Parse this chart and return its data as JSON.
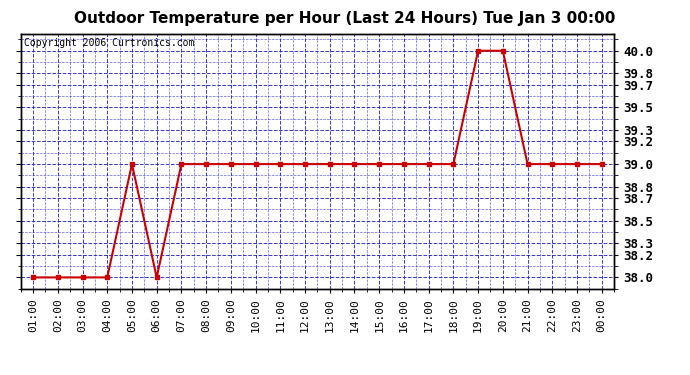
{
  "title": "Outdoor Temperature per Hour (Last 24 Hours) Tue Jan 3 00:00",
  "copyright": "Copyright 2006 Curtronics.com",
  "hours": [
    "01:00",
    "02:00",
    "03:00",
    "04:00",
    "05:00",
    "06:00",
    "07:00",
    "08:00",
    "09:00",
    "10:00",
    "11:00",
    "12:00",
    "13:00",
    "14:00",
    "15:00",
    "16:00",
    "17:00",
    "18:00",
    "19:00",
    "20:00",
    "21:00",
    "22:00",
    "23:00",
    "00:00"
  ],
  "temperatures": [
    38.0,
    38.0,
    38.0,
    38.0,
    39.0,
    38.0,
    39.0,
    39.0,
    39.0,
    39.0,
    39.0,
    39.0,
    39.0,
    39.0,
    39.0,
    39.0,
    39.0,
    39.0,
    40.0,
    40.0,
    39.0,
    39.0,
    39.0,
    39.0
  ],
  "yticks": [
    38.0,
    38.2,
    38.3,
    38.5,
    38.7,
    38.8,
    39.0,
    39.2,
    39.3,
    39.5,
    39.7,
    39.8,
    40.0
  ],
  "line_color": "#cc0000",
  "marker": "s",
  "marker_size": 3,
  "bg_color": "#ffffff",
  "plot_bg_color": "#ffffff",
  "grid_color": "#2222cc",
  "title_fontsize": 11,
  "copyright_fontsize": 7,
  "tick_fontsize": 8,
  "ylabel_right_fontsize": 9
}
